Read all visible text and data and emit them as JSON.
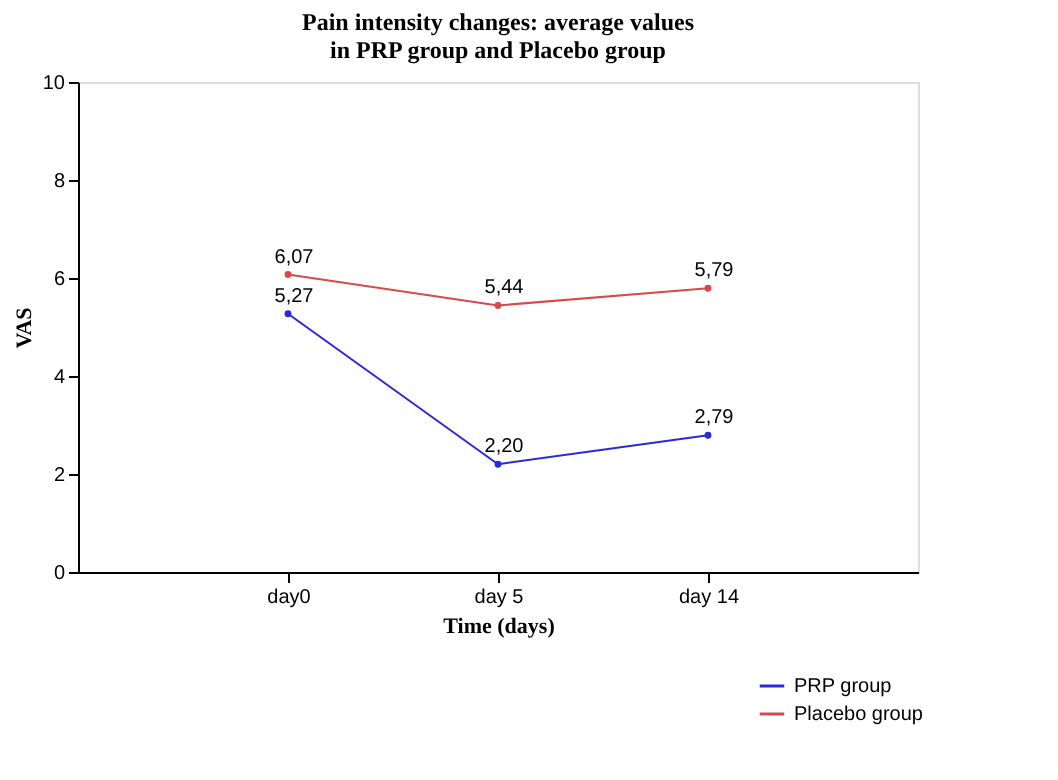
{
  "chart_data": {
    "type": "line",
    "title": [
      "Pain intensity changes: average values",
      "in PRP group and Placebo group"
    ],
    "xlabel": "Time (days)",
    "ylabel": "VAS",
    "categories": [
      "day0",
      "day 5",
      "day 14"
    ],
    "series": [
      {
        "name": "PRP group",
        "color": "#2a2ad8",
        "values": [
          5.27,
          2.2,
          2.79
        ],
        "value_labels": [
          "5,27",
          "2,20",
          "2,79"
        ]
      },
      {
        "name": "Placebo group",
        "color": "#d84a4a",
        "values": [
          6.07,
          5.44,
          5.79
        ],
        "value_labels": [
          "6,07",
          "5,44",
          "5,79"
        ]
      }
    ],
    "ylim": [
      0,
      10
    ],
    "yticks": [
      0,
      2,
      4,
      6,
      8,
      10
    ],
    "grid": false,
    "legend": "bottom right",
    "marker": "circle",
    "line_style": "solid"
  }
}
